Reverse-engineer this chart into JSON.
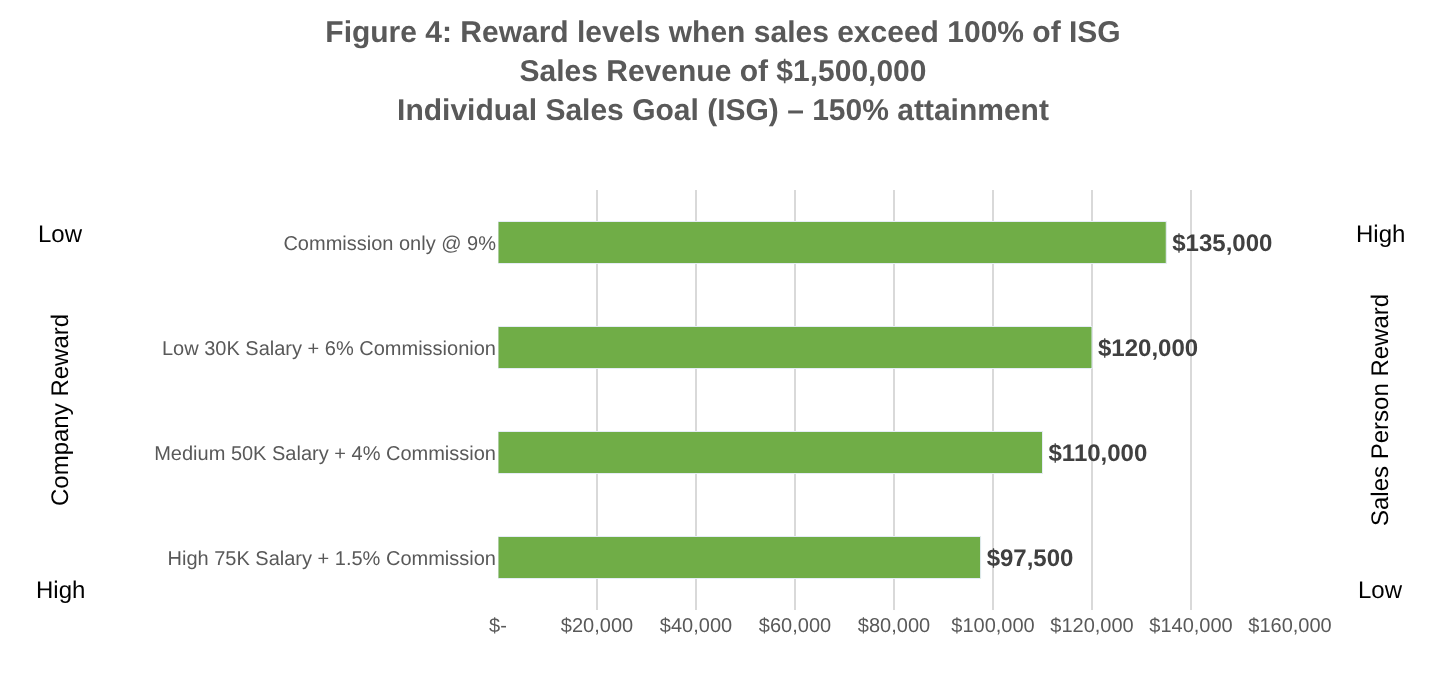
{
  "chart_data": {
    "type": "bar",
    "orientation": "horizontal",
    "title": "Figure 4: Reward levels when sales exceed 100% of ISG\nSales Revenue of $1,500,000\nIndividual Sales Goal (ISG) – 150% attainment",
    "ylabel": "Company Reward",
    "y2label": "Sales Person Reward",
    "categories": [
      "Commission only @ 9%",
      "Low 30K Salary + 6% Commissionion",
      "Medium 50K Salary + 4% Commission",
      "High 75K Salary + 1.5% Commission"
    ],
    "values": [
      135000,
      120000,
      110000,
      97500
    ],
    "value_labels": [
      "$135,000",
      "$120,000",
      "$110,000",
      "$97,500"
    ],
    "color": "#70ad47",
    "xlim": [
      0,
      160000
    ],
    "xticks": [
      {
        "value": 0,
        "label": "$-"
      },
      {
        "value": 20000,
        "label": "$20,000"
      },
      {
        "value": 40000,
        "label": "$40,000"
      },
      {
        "value": 60000,
        "label": "$60,000"
      },
      {
        "value": 80000,
        "label": "$80,000"
      },
      {
        "value": 100000,
        "label": "$100,000"
      },
      {
        "value": 120000,
        "label": "$120,000"
      },
      {
        "value": 140000,
        "label": "$140,000"
      },
      {
        "value": 160000,
        "label": "$160,000"
      }
    ],
    "grid": "x",
    "legend": false,
    "annotations": [
      "Low",
      "High",
      "High",
      "Low"
    ]
  }
}
